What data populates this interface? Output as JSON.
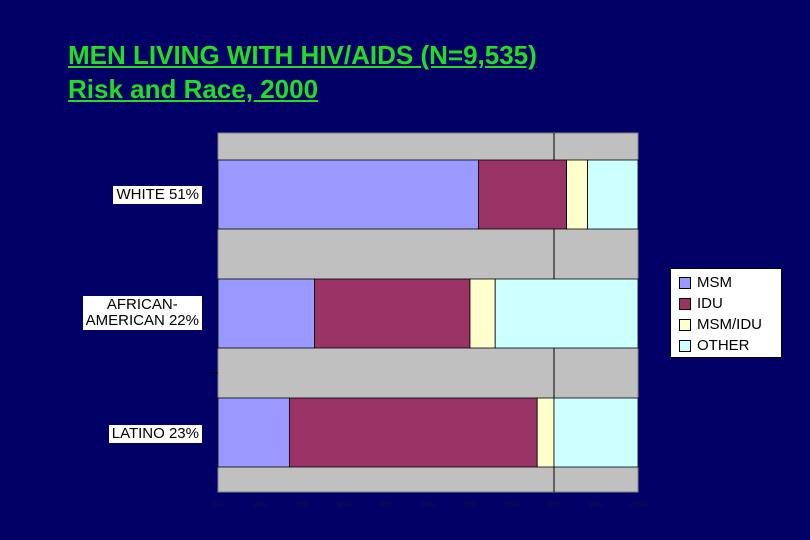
{
  "title": {
    "line1": "MEN LIVING WITH HIV/AIDS (N=9,535)",
    "line2": "Risk and Race, 2000"
  },
  "colors": {
    "background": "#000066",
    "title": "#22dd22",
    "plot_gap": "#c0c0c0"
  },
  "chart_data": {
    "type": "bar",
    "orientation": "horizontal",
    "stacked": true,
    "title": "MEN LIVING WITH HIV/AIDS (N=9,535) Risk and Race, 2000",
    "categories": [
      "WHITE 51%",
      "AFRICAN-AMERICAN 22%",
      "LATINO 23%"
    ],
    "category_label_lines": [
      [
        "WHITE 51%"
      ],
      [
        "AFRICAN-",
        "AMERICAN 22%"
      ],
      [
        "LATINO 23%"
      ]
    ],
    "series": [
      {
        "name": "MSM",
        "color": "#9999ff",
        "values": [
          62,
          23,
          17
        ]
      },
      {
        "name": "IDU",
        "color": "#993366",
        "values": [
          21,
          37,
          59
        ]
      },
      {
        "name": "MSM/IDU",
        "color": "#ffffcc",
        "values": [
          5,
          6,
          4
        ]
      },
      {
        "name": "OTHER",
        "color": "#ccffff",
        "values": [
          12,
          34,
          20
        ]
      }
    ],
    "xlim": [
      0,
      100
    ],
    "x_ticks": [
      "0%",
      "10%",
      "20%",
      "30%",
      "40%",
      "50%",
      "60%",
      "70%",
      "80%",
      "90%",
      "100%"
    ],
    "grid": true,
    "legend_position": "right"
  }
}
